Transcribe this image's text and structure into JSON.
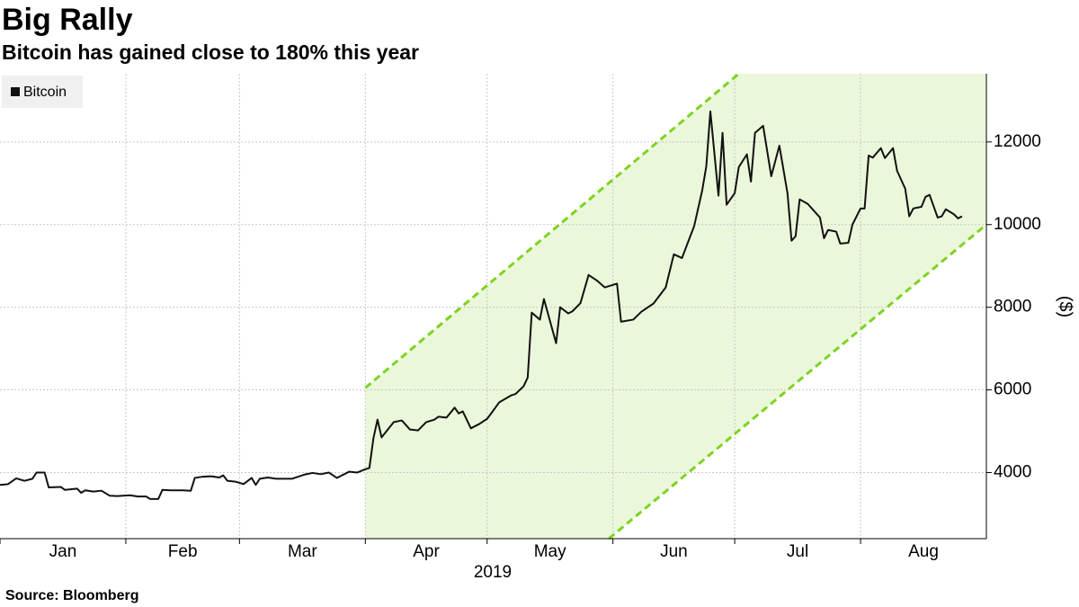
{
  "chart_data": {
    "type": "line",
    "title": "Big Rally",
    "subtitle": "Bitcoin has gained close to 180% this year",
    "source": "Source: Bloomberg",
    "x_label": "2019",
    "y_label": "($)",
    "xlim": [
      0,
      243
    ],
    "xticks": [
      {
        "value": 0,
        "label": "Jan"
      },
      {
        "value": 31,
        "label": "Feb"
      },
      {
        "value": 59,
        "label": "Mar"
      },
      {
        "value": 90,
        "label": "Apr"
      },
      {
        "value": 120,
        "label": "May"
      },
      {
        "value": 151,
        "label": "Jun"
      },
      {
        "value": 181,
        "label": "Jul"
      },
      {
        "value": 212,
        "label": "Aug"
      }
    ],
    "ylim": [
      2400,
      13650
    ],
    "yticks": [
      4000,
      6000,
      8000,
      10000,
      12000
    ],
    "grid": true,
    "legend": "top-left",
    "channel": {
      "color": "#7ed321",
      "fill": "#ebf7da",
      "upper": {
        "x": [
          90,
          182
        ],
        "y": [
          6050,
          13650
        ]
      },
      "lower": {
        "x": [
          150,
          243
        ],
        "y": [
          2400,
          10000
        ]
      }
    },
    "series": [
      {
        "name": "Bitcoin",
        "color": "#111111",
        "x": [
          0,
          2,
          4,
          6,
          8,
          9,
          11,
          12,
          15,
          16,
          19,
          20,
          21,
          23,
          25,
          27,
          29,
          32,
          34,
          36,
          37,
          39,
          40,
          42,
          45,
          47,
          48,
          50,
          52,
          54,
          55,
          56,
          58,
          60,
          62,
          63,
          64,
          66,
          68,
          72,
          75,
          77,
          79,
          81,
          83,
          84,
          86,
          88,
          90,
          91,
          92,
          93,
          94,
          97,
          99,
          101,
          103,
          105,
          107,
          108,
          110,
          112,
          113,
          114,
          116,
          118,
          120,
          121,
          123,
          126,
          127,
          129,
          130,
          131,
          133,
          134,
          137,
          138,
          140,
          141,
          143,
          145,
          147,
          149,
          152,
          153,
          156,
          158,
          161,
          164,
          166,
          168,
          171,
          173,
          174,
          175,
          177,
          178,
          179,
          181,
          182,
          184,
          185,
          186,
          188,
          190,
          192,
          194,
          195,
          196,
          197,
          199,
          202,
          203,
          204,
          206,
          207,
          209,
          210,
          212,
          213,
          214,
          215,
          217,
          218,
          220,
          221,
          223,
          224,
          225,
          227,
          228,
          229,
          231,
          232,
          233,
          235,
          236,
          237
        ],
        "values": [
          3700,
          3720,
          3860,
          3800,
          3850,
          4000,
          4000,
          3640,
          3650,
          3580,
          3610,
          3510,
          3570,
          3540,
          3560,
          3440,
          3430,
          3450,
          3420,
          3420,
          3360,
          3360,
          3580,
          3570,
          3570,
          3560,
          3870,
          3900,
          3910,
          3880,
          3930,
          3800,
          3780,
          3720,
          3870,
          3700,
          3850,
          3880,
          3850,
          3850,
          3950,
          3990,
          3960,
          4000,
          3870,
          3920,
          4020,
          4000,
          4080,
          4110,
          4830,
          5280,
          4850,
          5220,
          5260,
          5040,
          5020,
          5220,
          5280,
          5350,
          5330,
          5570,
          5430,
          5480,
          5070,
          5170,
          5300,
          5430,
          5700,
          5870,
          5900,
          6090,
          6300,
          7870,
          7700,
          8200,
          7130,
          8000,
          7850,
          7900,
          8100,
          8780,
          8650,
          8480,
          8570,
          7650,
          7700,
          7890,
          8090,
          8480,
          9280,
          9190,
          9960,
          10830,
          11410,
          12740,
          10700,
          12220,
          10480,
          10760,
          11390,
          11700,
          11040,
          12220,
          12390,
          11170,
          11910,
          10760,
          9610,
          9720,
          10610,
          10500,
          10170,
          9670,
          9870,
          9830,
          9540,
          9560,
          10000,
          10390,
          10390,
          11670,
          11620,
          11850,
          11610,
          11850,
          11300,
          10870,
          10200,
          10390,
          10430,
          10670,
          10720,
          10170,
          10200,
          10370,
          10250,
          10150,
          10200
        ]
      }
    ]
  }
}
